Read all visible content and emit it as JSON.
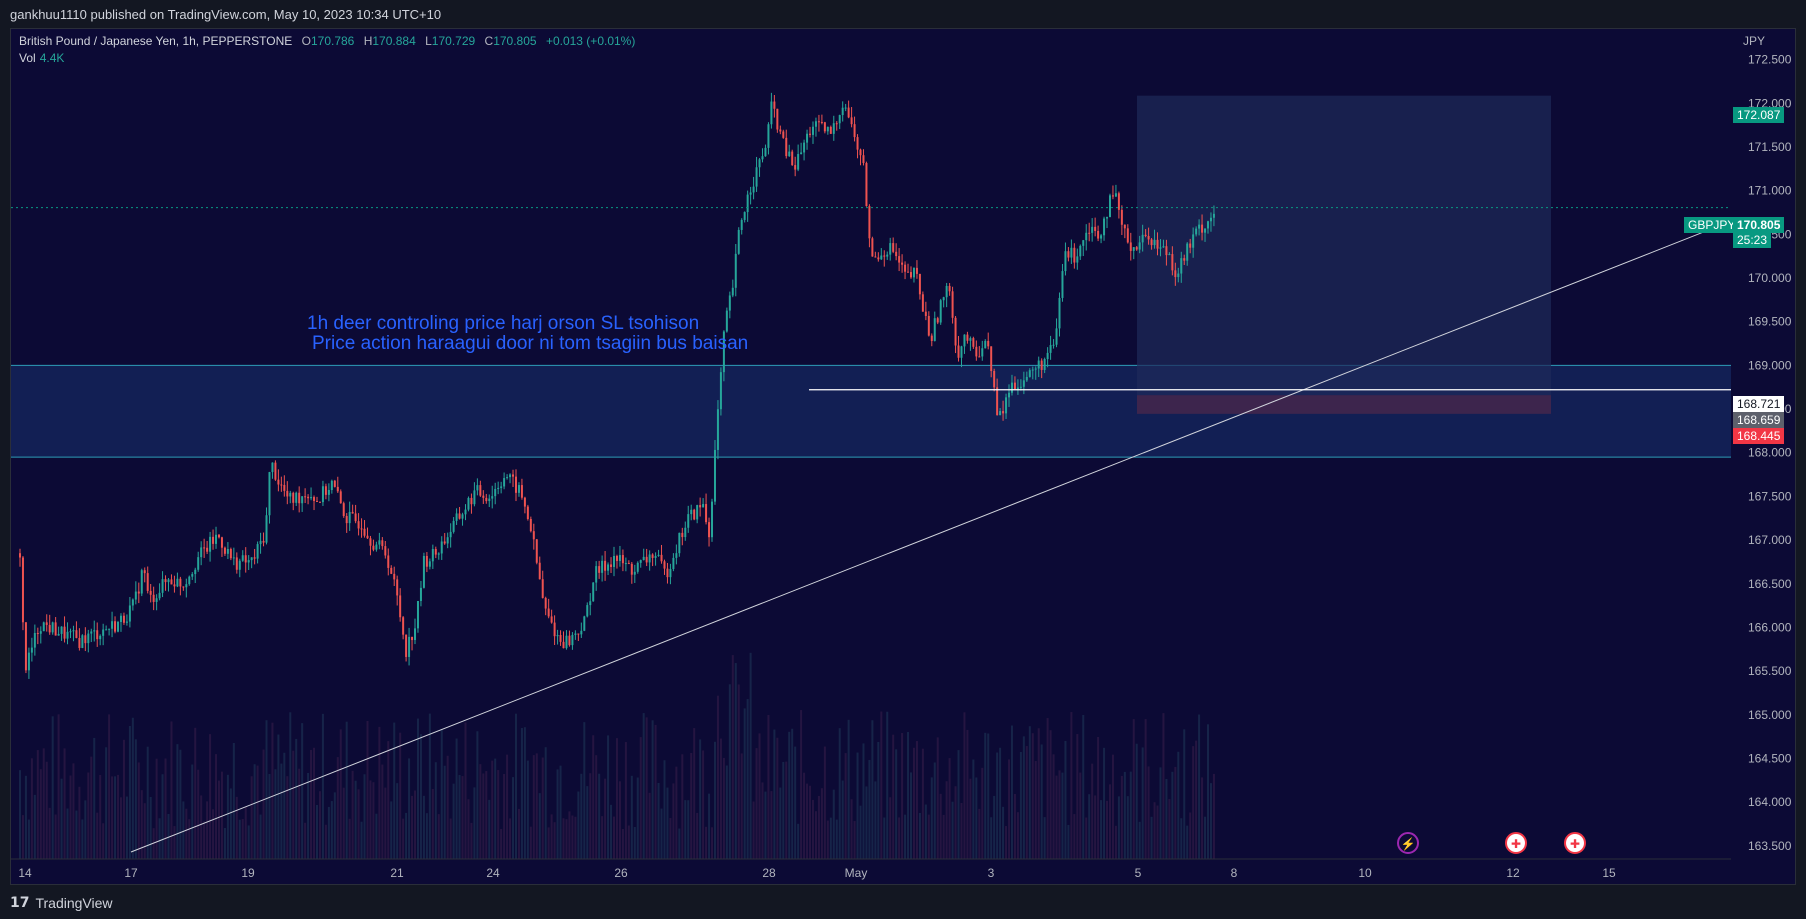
{
  "header": {
    "published_text": "gankhuu1110 published on TradingView.com, May 10, 2023 10:34 UTC+10"
  },
  "legend": {
    "title": "British Pound / Japanese Yen, 1h, PEPPERSTONE",
    "open_label": "O",
    "open": "170.786",
    "high_label": "H",
    "high": "170.884",
    "low_label": "L",
    "low": "170.729",
    "close_label": "C",
    "close": "170.805",
    "change": "+0.013 (+0.01%)",
    "vol_label": "Vol",
    "vol_value": "4.4K"
  },
  "annotation": {
    "line1": "1h deer controling price harj orson SL tsohison",
    "line2": "Price action haraagui door ni tom tsagiin bus baisan"
  },
  "price_axis": {
    "currency": "JPY",
    "ticks": [
      "172.500",
      "172.000",
      "171.500",
      "171.000",
      "170.500",
      "170.000",
      "169.500",
      "169.000",
      "168.500",
      "168.000",
      "167.500",
      "167.000",
      "166.500",
      "166.000",
      "165.500",
      "165.000",
      "164.500",
      "164.000",
      "163.500"
    ]
  },
  "price_labels": {
    "target": "172.087",
    "symbol": "GBPJPY",
    "last": "170.805",
    "countdown": "25:23",
    "line_level": "168.721",
    "entry": "168.659",
    "stop": "168.445"
  },
  "time_axis": {
    "ticks": [
      "14",
      "17",
      "19",
      "21",
      "24",
      "26",
      "28",
      "May",
      "3",
      "5",
      "8",
      "10",
      "12",
      "15"
    ]
  },
  "events": {
    "icons": [
      "lightning-icon",
      "uk-flag-icon",
      "uk-flag-icon"
    ]
  },
  "footer": {
    "brand": "TradingView"
  },
  "colors": {
    "background": "#0c0a35",
    "up": "#26a69a",
    "down": "#ef5350",
    "zone_line": "#2d9cb6",
    "annotation": "#2962ff",
    "target_tag": "#089981",
    "stop_tag": "#f23645"
  },
  "chart_data": {
    "type": "candlestick",
    "symbol": "GBPJPY",
    "timeframe": "1h",
    "ylim": [
      163.35,
      172.85
    ],
    "last_price": 170.805,
    "demand_zone": [
      167.95,
      169.0
    ],
    "horizontal_line": 168.721,
    "position": {
      "type": "long",
      "entry": 168.659,
      "target": 172.087,
      "stop": 168.445
    },
    "trendline": {
      "from": [
        "Apr 17",
        163.43
      ],
      "to": [
        "May 10",
        170.65
      ]
    },
    "path": [
      [
        0,
        166.85
      ],
      [
        5,
        165.5
      ],
      [
        20,
        166.05
      ],
      [
        60,
        165.85
      ],
      [
        100,
        166.05
      ],
      [
        115,
        166.25
      ],
      [
        125,
        166.7
      ],
      [
        130,
        166.3
      ],
      [
        150,
        166.55
      ],
      [
        165,
        166.5
      ],
      [
        180,
        166.8
      ],
      [
        200,
        167.05
      ],
      [
        215,
        166.75
      ],
      [
        235,
        166.75
      ],
      [
        248,
        167.1
      ],
      [
        253,
        167.9
      ],
      [
        262,
        167.65
      ],
      [
        272,
        167.45
      ],
      [
        292,
        167.55
      ],
      [
        300,
        167.45
      ],
      [
        315,
        167.65
      ],
      [
        330,
        167.25
      ],
      [
        345,
        167.2
      ],
      [
        355,
        167.0
      ],
      [
        370,
        166.85
      ],
      [
        380,
        166.4
      ],
      [
        390,
        165.75
      ],
      [
        400,
        166.05
      ],
      [
        408,
        166.75
      ],
      [
        420,
        166.85
      ],
      [
        440,
        167.2
      ],
      [
        460,
        167.55
      ],
      [
        475,
        167.5
      ],
      [
        490,
        167.75
      ],
      [
        505,
        167.55
      ],
      [
        515,
        167.2
      ],
      [
        530,
        166.2
      ],
      [
        545,
        165.85
      ],
      [
        555,
        165.85
      ],
      [
        570,
        166.05
      ],
      [
        580,
        166.6
      ],
      [
        600,
        166.8
      ],
      [
        620,
        166.65
      ],
      [
        640,
        166.85
      ],
      [
        652,
        166.6
      ],
      [
        662,
        166.9
      ],
      [
        675,
        167.25
      ],
      [
        690,
        167.4
      ],
      [
        696,
        167.05
      ],
      [
        702,
        168.0
      ],
      [
        706,
        168.6
      ],
      [
        712,
        169.45
      ],
      [
        720,
        169.9
      ],
      [
        727,
        170.6
      ],
      [
        738,
        171.05
      ],
      [
        752,
        171.45
      ],
      [
        760,
        172.0
      ],
      [
        770,
        171.55
      ],
      [
        782,
        171.25
      ],
      [
        800,
        171.75
      ],
      [
        820,
        171.65
      ],
      [
        832,
        172.05
      ],
      [
        842,
        171.65
      ],
      [
        852,
        171.25
      ],
      [
        860,
        170.2
      ],
      [
        870,
        170.3
      ],
      [
        880,
        170.35
      ],
      [
        895,
        170.0
      ],
      [
        905,
        170.05
      ],
      [
        912,
        169.65
      ],
      [
        920,
        169.3
      ],
      [
        930,
        169.7
      ],
      [
        940,
        169.9
      ],
      [
        946,
        169.1
      ],
      [
        955,
        169.35
      ],
      [
        965,
        169.1
      ],
      [
        975,
        169.3
      ],
      [
        982,
        168.95
      ],
      [
        987,
        168.4
      ],
      [
        992,
        168.45
      ],
      [
        1000,
        168.75
      ],
      [
        1015,
        168.85
      ],
      [
        1030,
        169.0
      ],
      [
        1045,
        169.2
      ],
      [
        1055,
        170.3
      ],
      [
        1065,
        170.25
      ],
      [
        1080,
        170.6
      ],
      [
        1090,
        170.5
      ],
      [
        1100,
        170.85
      ],
      [
        1107,
        170.9
      ],
      [
        1115,
        170.5
      ],
      [
        1125,
        170.35
      ],
      [
        1140,
        170.5
      ],
      [
        1150,
        170.35
      ],
      [
        1160,
        170.3
      ],
      [
        1168,
        170.05
      ],
      [
        1178,
        170.3
      ],
      [
        1190,
        170.55
      ],
      [
        1200,
        170.65
      ],
      [
        1208,
        170.805
      ]
    ],
    "volume_max": 1
  }
}
